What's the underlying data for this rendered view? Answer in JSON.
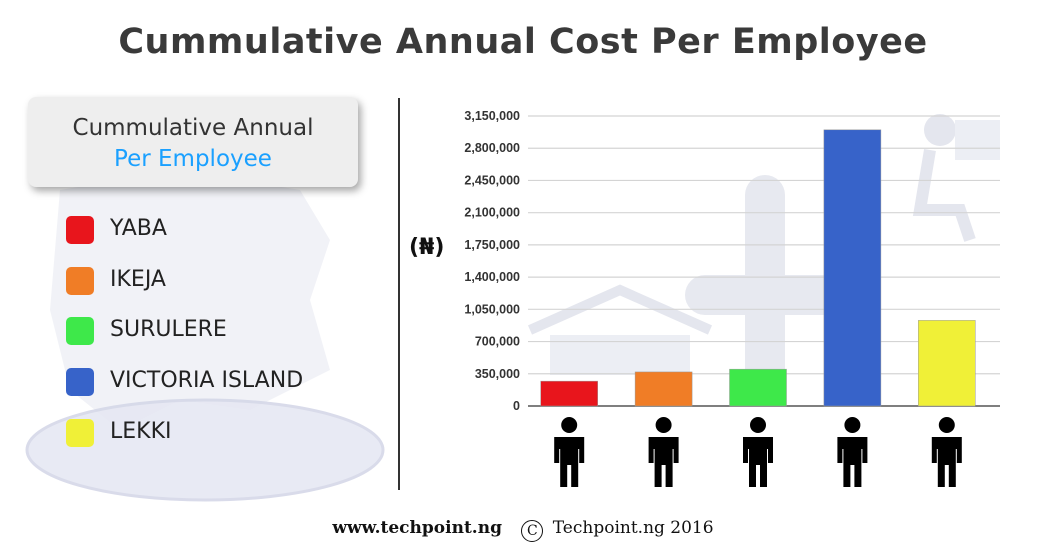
{
  "title": "Cummulative Annual Cost Per Employee",
  "legend": {
    "heading_line1": "Cummulative Annual",
    "heading_line2": "Per Employee",
    "items": [
      {
        "label": "YABA",
        "color": "#e8151c"
      },
      {
        "label": "IKEJA",
        "color": "#f07d26"
      },
      {
        "label": "SURULERE",
        "color": "#3ee84a"
      },
      {
        "label": "VICTORIA ISLAND",
        "color": "#3763c9"
      },
      {
        "label": "LEKKI",
        "color": "#f0f037"
      }
    ]
  },
  "chart_data": {
    "type": "bar",
    "categories": [
      "YABA",
      "IKEJA",
      "SURULERE",
      "VICTORIA ISLAND",
      "LEKKI"
    ],
    "values": [
      270000,
      370000,
      400000,
      3000000,
      930000
    ],
    "colors": [
      "#e8151c",
      "#f07d26",
      "#3ee84a",
      "#3763c9",
      "#f0f037"
    ],
    "ylabel": "(₦)",
    "ylim": [
      0,
      3150000
    ],
    "yticks": [
      0,
      350000,
      700000,
      1050000,
      1400000,
      1750000,
      2100000,
      2450000,
      2800000,
      3150000
    ],
    "ytick_labels": [
      "0",
      "350,000",
      "700,000",
      "1,050,000",
      "1,400,000",
      "1,750,000",
      "2,100,000",
      "2,450,000",
      "2,800,000",
      "3,150,000"
    ],
    "grid": true,
    "legend_position": "left"
  },
  "footer": {
    "url": "www.techpoint.ng",
    "copyright_symbol": "C",
    "copyright": "Techpoint.ng 2016"
  }
}
